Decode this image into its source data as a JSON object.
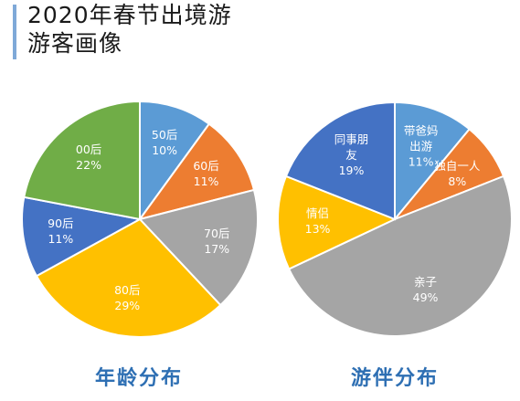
{
  "header": {
    "title_line1": "2020年春节出境游",
    "title_line2": "游客画像"
  },
  "chart_data": [
    {
      "type": "pie",
      "title": "年龄分布",
      "slices": [
        {
          "label": "50后",
          "percent_label": "10%",
          "value": 10,
          "color": "#5b9bd5"
        },
        {
          "label": "60后",
          "percent_label": "11%",
          "value": 11,
          "color": "#ed7d31"
        },
        {
          "label": "70后",
          "percent_label": "17%",
          "value": 17,
          "color": "#a5a5a5"
        },
        {
          "label": "80后",
          "percent_label": "29%",
          "value": 29,
          "color": "#ffc000"
        },
        {
          "label": "90后",
          "percent_label": "11%",
          "value": 11,
          "color": "#4472c4"
        },
        {
          "label": "00后",
          "percent_label": "22%",
          "value": 22,
          "color": "#70ad47"
        }
      ]
    },
    {
      "type": "pie",
      "title": "游伴分布",
      "slices": [
        {
          "label": "带爸妈出游",
          "label_lines": [
            "带爸妈",
            "出游"
          ],
          "percent_label": "11%",
          "value": 11,
          "color": "#5b9bd5"
        },
        {
          "label": "独自一人",
          "label_lines": [
            "独自一人"
          ],
          "percent_label": "8%",
          "value": 8,
          "color": "#ed7d31"
        },
        {
          "label": "亲子",
          "label_lines": [
            "亲子"
          ],
          "percent_label": "49%",
          "value": 49,
          "color": "#a5a5a5"
        },
        {
          "label": "情侣",
          "label_lines": [
            "情侣"
          ],
          "percent_label": "13%",
          "value": 13,
          "color": "#ffc000"
        },
        {
          "label": "同事朋友",
          "label_lines": [
            "同事朋",
            "友"
          ],
          "percent_label": "19%",
          "value": 19,
          "color": "#4472c4"
        }
      ]
    }
  ]
}
